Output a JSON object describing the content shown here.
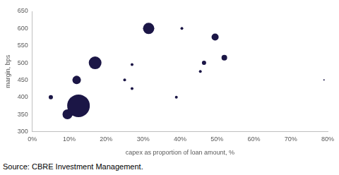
{
  "chart_data": {
    "type": "bubble",
    "x_label": "capex as proportion of loan amount, %",
    "y_label": "margin, bps",
    "source": "Source: CBRE Investment Management.",
    "x": [
      5,
      9.5,
      11,
      12.5,
      12,
      17,
      25,
      27,
      27,
      31.5,
      39,
      40.5,
      45.5,
      46.5,
      49.5,
      52,
      79
    ],
    "values": [
      400,
      350,
      352,
      375,
      450,
      500,
      450,
      495,
      425,
      600,
      400,
      600,
      475,
      500,
      575,
      515,
      450
    ],
    "sizes": [
      3,
      7,
      3,
      16,
      6,
      9,
      2,
      2,
      2,
      8,
      2,
      2,
      2,
      3,
      5,
      4,
      1
    ],
    "color": "#1b1646",
    "xlim": [
      0,
      80
    ],
    "xticks": [
      {
        "value": 0,
        "label": "0%"
      },
      {
        "value": 10,
        "label": "10%"
      },
      {
        "value": 20,
        "label": "20%"
      },
      {
        "value": 30,
        "label": "30%"
      },
      {
        "value": 40,
        "label": "40%"
      },
      {
        "value": 50,
        "label": "50%"
      },
      {
        "value": 60,
        "label": "60%"
      },
      {
        "value": 70,
        "label": "70%"
      },
      {
        "value": 80,
        "label": "80%"
      }
    ],
    "ylim": [
      300,
      650
    ],
    "yticks": [
      300,
      350,
      400,
      450,
      500,
      550,
      600,
      650
    ],
    "grid": false
  }
}
